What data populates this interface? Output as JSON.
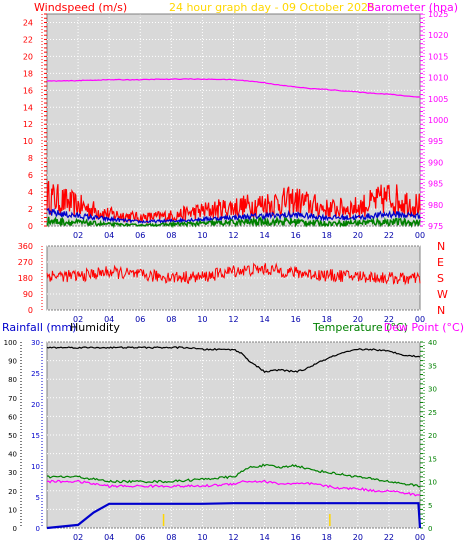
{
  "header": {
    "windspeed_label": "Windspeed (m/s)",
    "title": "24 hour graph day - 09 October 2025",
    "barometer_label": "Barometer (hpa)"
  },
  "lower_header": {
    "rainfall_label": "Rainfall (mm)",
    "humidity_label": "Humidity",
    "temperature_label": "Temperature (°C)",
    "dewpoint_label": "Dew Point (°C)"
  },
  "colors": {
    "red": "#ff0000",
    "magenta": "#ff00ff",
    "yellow": "#ffd700",
    "green": "#008000",
    "blue": "#0000cc",
    "black": "#000000",
    "plot_bg": "#d9d9d9"
  },
  "chart_data": [
    {
      "id": "wind_baro",
      "type": "line",
      "x_ticks": [
        "02",
        "04",
        "06",
        "08",
        "10",
        "12",
        "14",
        "16",
        "18",
        "20",
        "22",
        "00"
      ],
      "y_left": {
        "label": "Windspeed (m/s)",
        "range": [
          0,
          25
        ],
        "ticks": [
          "0",
          "2",
          "4",
          "6",
          "8",
          "10",
          "12",
          "14",
          "16",
          "18",
          "20",
          "22",
          "24"
        ]
      },
      "y_right": {
        "label": "Barometer (hpa)",
        "range": [
          975,
          1025
        ],
        "ticks": [
          "975",
          "980",
          "985",
          "990",
          "995",
          "1000",
          "1005",
          "1010",
          "1015",
          "1020",
          "1025"
        ]
      },
      "series": [
        {
          "name": "Barometer",
          "axis": "right",
          "color": "#ff00ff",
          "x": [
            0,
            1,
            2,
            3,
            4,
            5,
            6,
            7,
            8,
            9,
            10,
            11,
            12,
            13,
            14,
            15,
            16,
            17,
            18,
            19,
            20,
            21,
            22,
            23,
            24
          ],
          "values": [
            1009.2,
            1009.2,
            1009.3,
            1009.4,
            1009.5,
            1009.5,
            1009.5,
            1009.6,
            1009.6,
            1009.7,
            1009.6,
            1009.6,
            1009.5,
            1009.2,
            1008.8,
            1008.2,
            1007.8,
            1007.4,
            1007.2,
            1006.9,
            1006.6,
            1006.3,
            1006.1,
            1005.7,
            1005.4
          ]
        },
        {
          "name": "Gust",
          "axis": "left",
          "color": "#ff0000",
          "x": [
            0,
            2,
            4,
            6,
            8,
            10,
            12,
            14,
            16,
            18,
            20,
            22,
            24
          ],
          "values": [
            3.5,
            2.4,
            1.4,
            1.0,
            1.2,
            1.8,
            2.2,
            2.6,
            3.0,
            2.0,
            2.2,
            3.4,
            2.4
          ]
        },
        {
          "name": "Average",
          "axis": "left",
          "color": "#0000cc",
          "x": [
            0,
            2,
            4,
            6,
            8,
            10,
            12,
            14,
            16,
            18,
            20,
            22,
            24
          ],
          "values": [
            1.6,
            1.2,
            0.8,
            0.5,
            0.6,
            0.8,
            1.0,
            1.2,
            1.3,
            1.0,
            1.0,
            1.4,
            1.2
          ]
        },
        {
          "name": "Lull",
          "axis": "left",
          "color": "#008000",
          "x": [
            0,
            2,
            4,
            6,
            8,
            10,
            12,
            14,
            16,
            18,
            20,
            22,
            24
          ],
          "values": [
            0.6,
            0.4,
            0.2,
            0.1,
            0.2,
            0.3,
            0.4,
            0.5,
            0.5,
            0.3,
            0.4,
            0.5,
            0.4
          ]
        }
      ]
    },
    {
      "id": "direction",
      "type": "line",
      "x_ticks": [
        "02",
        "04",
        "06",
        "08",
        "10",
        "12",
        "14",
        "16",
        "18",
        "20",
        "22",
        "00"
      ],
      "y_left": {
        "range": [
          0,
          360
        ],
        "ticks": [
          "0",
          "90",
          "180",
          "270",
          "360"
        ]
      },
      "y_right": {
        "ticks": [
          "N",
          "E",
          "S",
          "W",
          "N"
        ]
      },
      "series": [
        {
          "name": "Direction",
          "color": "#ff0000",
          "x": [
            0,
            2,
            4,
            6,
            8,
            10,
            12,
            14,
            16,
            18,
            20,
            22,
            24
          ],
          "values": [
            195,
            190,
            215,
            195,
            185,
            185,
            220,
            230,
            210,
            195,
            190,
            180,
            175
          ]
        }
      ]
    },
    {
      "id": "rain_hum_temp",
      "type": "line",
      "x_ticks": [
        "02",
        "04",
        "06",
        "08",
        "10",
        "12",
        "14",
        "16",
        "18",
        "20",
        "22",
        "00"
      ],
      "y_left": {
        "label": "Humidity",
        "range": [
          0,
          100
        ],
        "ticks": [
          "0",
          "10",
          "20",
          "30",
          "40",
          "50",
          "60",
          "70",
          "80",
          "90",
          "100"
        ]
      },
      "y_left_inner": {
        "label": "Rainfall (mm)",
        "range": [
          0,
          30
        ],
        "ticks": [
          "0",
          "5",
          "10",
          "15",
          "20",
          "25",
          "30"
        ]
      },
      "y_right": {
        "label": "Temperature (°C)",
        "range": [
          0,
          40
        ],
        "ticks": [
          "0",
          "5",
          "10",
          "15",
          "20",
          "25",
          "30",
          "35",
          "40"
        ]
      },
      "series": [
        {
          "name": "Humidity",
          "axis": "left",
          "color": "#000000",
          "x": [
            0,
            2,
            4,
            6,
            8,
            9,
            10,
            11,
            12,
            12.5,
            13,
            13.5,
            14,
            15,
            16,
            16.5,
            17,
            18,
            19,
            20,
            21,
            22,
            23,
            24
          ],
          "values": [
            97,
            97,
            97,
            97,
            97,
            97,
            96,
            96,
            96,
            94,
            90,
            87,
            84,
            85,
            84,
            85,
            87,
            91,
            94,
            96,
            96,
            95,
            93,
            92
          ]
        },
        {
          "name": "Rainfall",
          "axis": "inner",
          "color": "#0000cc",
          "x": [
            0,
            2,
            3,
            4,
            6,
            8,
            10,
            12,
            14,
            16,
            18,
            20,
            22,
            23,
            23.9,
            24
          ],
          "values": [
            0,
            0.5,
            2.5,
            3.9,
            3.9,
            3.9,
            3.9,
            4.0,
            4.0,
            4.0,
            4.0,
            4.0,
            4.0,
            4.0,
            4.0,
            0
          ]
        },
        {
          "name": "Temperature",
          "axis": "right",
          "color": "#008000",
          "x": [
            0,
            2,
            3,
            4,
            6,
            8,
            10,
            12,
            12.5,
            13,
            14,
            15,
            16,
            17,
            18,
            19,
            20,
            21,
            22,
            23,
            24
          ],
          "values": [
            11,
            11,
            10.5,
            10,
            10,
            10,
            10.5,
            11,
            12,
            13,
            13.5,
            13,
            13.5,
            12.5,
            12,
            11.5,
            11,
            10.5,
            10,
            9.5,
            9
          ]
        },
        {
          "name": "Dew Point",
          "axis": "right",
          "color": "#ff00ff",
          "x": [
            0,
            2,
            3,
            4,
            6,
            8,
            10,
            12,
            12.5,
            13,
            14,
            15,
            16,
            17,
            18,
            19,
            20,
            21,
            22,
            23,
            24
          ],
          "values": [
            10,
            10,
            9.5,
            9,
            9,
            9,
            9,
            9.5,
            10,
            10,
            10,
            9.5,
            9.5,
            9.5,
            9,
            8.5,
            8.5,
            8,
            8,
            7.5,
            7
          ]
        },
        {
          "name": "Markers",
          "axis": "none",
          "color": "#ffd700",
          "x": [
            7.5,
            18.2
          ],
          "values": [
            0,
            0
          ]
        }
      ]
    }
  ]
}
